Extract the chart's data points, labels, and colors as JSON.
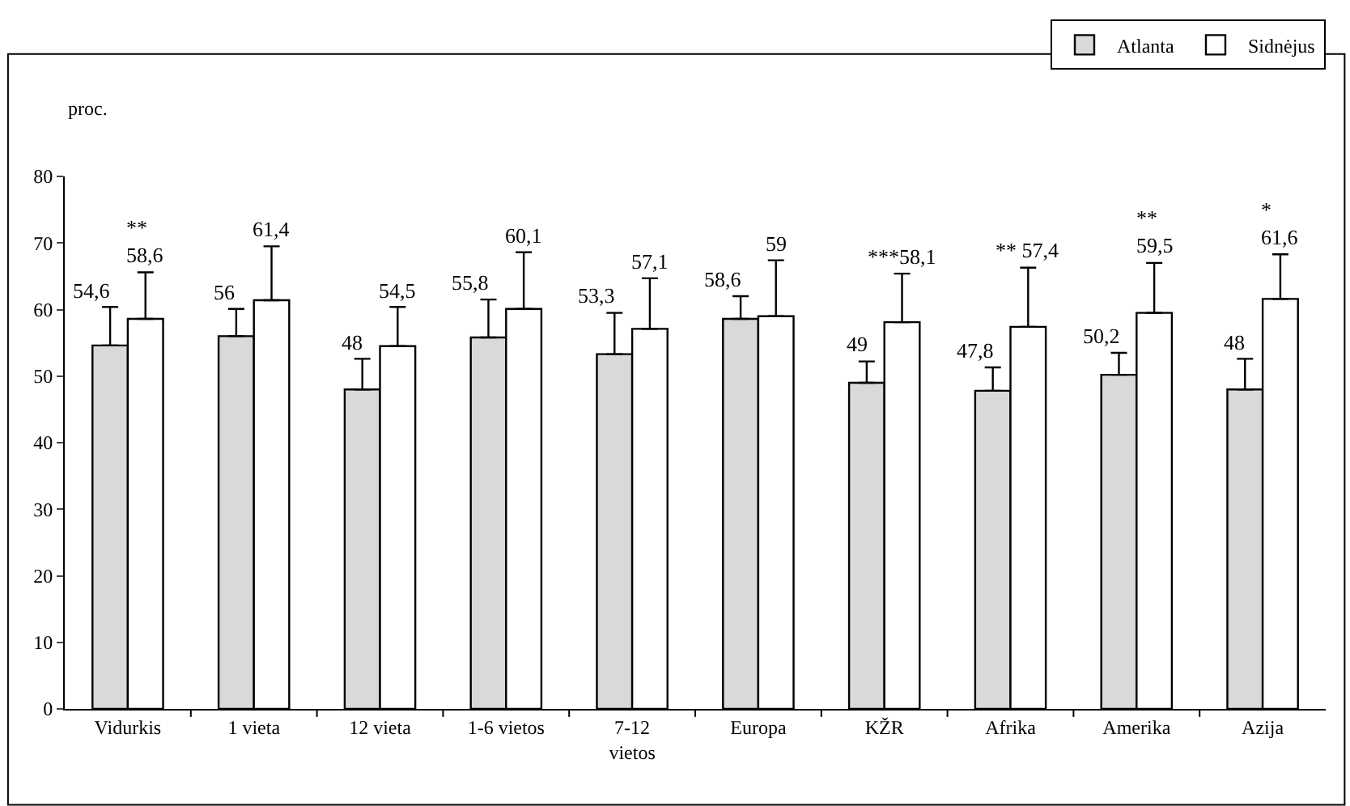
{
  "chart_data": {
    "type": "bar",
    "ylabel": "proc.",
    "categories": [
      "Vidurkis",
      "1 vieta",
      "12 vieta",
      "1-6 vietos",
      "7-12\nvietos",
      "Europa",
      "KŽR",
      "Afrika",
      "Amerika",
      "Azija"
    ],
    "series": [
      {
        "name": "Atlanta",
        "color": "#d9d9d9",
        "values": [
          54.6,
          56,
          48,
          55.8,
          53.3,
          58.6,
          49,
          47.8,
          50.2,
          48
        ],
        "value_labels": [
          "54,6",
          "56",
          "48",
          "55,8",
          "53,3",
          "58,6",
          "49",
          "47,8",
          "50,2",
          "48"
        ],
        "errors": [
          [
            54.6,
            60.4
          ],
          [
            56,
            60.1
          ],
          [
            48,
            52.6
          ],
          [
            55.8,
            61.5
          ],
          [
            53.3,
            59.5
          ],
          [
            58.6,
            62
          ],
          [
            49,
            52.2
          ],
          [
            47.8,
            51.3
          ],
          [
            50.2,
            53.5
          ],
          [
            48,
            52.6
          ]
        ]
      },
      {
        "name": "Sidnėjus",
        "color": "#ffffff",
        "values": [
          58.6,
          61.4,
          54.5,
          60.1,
          57.1,
          59,
          58.1,
          57.4,
          59.5,
          61.6
        ],
        "value_labels": [
          "**\n58,6",
          "61,4",
          "54,5",
          "60,1",
          "57,1",
          "59",
          "***58,1",
          "** 57,4",
          "**\n59,5",
          "*\n61,6"
        ],
        "errors": [
          [
            58.6,
            65.6
          ],
          [
            61.4,
            69.5
          ],
          [
            54.5,
            60.4
          ],
          [
            60.1,
            68.6
          ],
          [
            57.1,
            64.7
          ],
          [
            59,
            67.4
          ],
          [
            58.1,
            65.4
          ],
          [
            57.4,
            66.3
          ],
          [
            59.5,
            67
          ],
          [
            61.6,
            68.3
          ]
        ]
      }
    ],
    "ylim": [
      0,
      80
    ],
    "yticks": [
      0,
      10,
      20,
      30,
      40,
      50,
      60,
      70,
      80
    ],
    "grid": false,
    "legend": "top right"
  }
}
